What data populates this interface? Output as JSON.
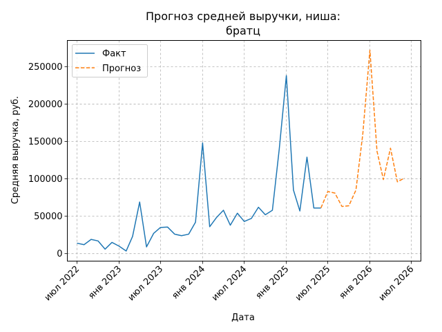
{
  "chart_data": {
    "type": "line",
    "title": [
      "Прогноз средней выручки, ниша:",
      "братц"
    ],
    "xlabel": "Дата",
    "ylabel": "Средняя выручка, руб.",
    "grid": true,
    "legend_position": "top-left",
    "xlim": [
      "2022-05-20",
      "2026-08-12"
    ],
    "ylim": [
      -10000,
      285000
    ],
    "x_ticks": [
      {
        "date": "2022-07-01",
        "label": "июл 2022"
      },
      {
        "date": "2023-01-01",
        "label": "янв 2023"
      },
      {
        "date": "2023-07-01",
        "label": "июл 2023"
      },
      {
        "date": "2024-01-01",
        "label": "янв 2024"
      },
      {
        "date": "2024-07-01",
        "label": "июл 2024"
      },
      {
        "date": "2025-01-01",
        "label": "янв 2025"
      },
      {
        "date": "2025-07-01",
        "label": "июл 2025"
      },
      {
        "date": "2026-01-01",
        "label": "янв 2026"
      },
      {
        "date": "2026-07-01",
        "label": "июл 2026"
      }
    ],
    "y_ticks": [
      0,
      50000,
      100000,
      150000,
      200000,
      250000
    ],
    "series": [
      {
        "name": "Факт",
        "color": "#1f77b4",
        "style": "solid",
        "x": [
          "2022-07-01",
          "2022-08-01",
          "2022-09-01",
          "2022-10-01",
          "2022-11-01",
          "2022-12-01",
          "2023-01-01",
          "2023-02-01",
          "2023-03-01",
          "2023-04-01",
          "2023-05-01",
          "2023-06-01",
          "2023-07-01",
          "2023-08-01",
          "2023-09-01",
          "2023-10-01",
          "2023-11-01",
          "2023-12-01",
          "2024-01-01",
          "2024-02-01",
          "2024-03-01",
          "2024-04-01",
          "2024-05-01",
          "2024-06-01",
          "2024-07-01",
          "2024-08-01",
          "2024-09-01",
          "2024-10-01",
          "2024-11-01",
          "2024-12-01",
          "2025-01-01",
          "2025-02-01",
          "2025-03-01",
          "2025-04-01",
          "2025-05-01",
          "2025-06-01"
        ],
        "y": [
          14000,
          12000,
          19000,
          17000,
          6000,
          15000,
          10000,
          3500,
          23000,
          69000,
          9000,
          27000,
          35000,
          35500,
          26000,
          24000,
          26000,
          42000,
          148000,
          36000,
          48000,
          58000,
          38000,
          54000,
          43000,
          47000,
          62000,
          52000,
          58000,
          140000,
          238000,
          85000,
          57000,
          129000,
          61000,
          61000
        ]
      },
      {
        "name": "Прогноз",
        "color": "#ff7f0e",
        "style": "dashed",
        "x": [
          "2025-06-01",
          "2025-07-01",
          "2025-08-01",
          "2025-09-01",
          "2025-10-01",
          "2025-11-01",
          "2025-12-01",
          "2026-01-01",
          "2026-02-01",
          "2026-03-01",
          "2026-04-01",
          "2026-05-01",
          "2026-06-01"
        ],
        "y": [
          61000,
          83000,
          81000,
          63000,
          64000,
          85000,
          160000,
          272000,
          137000,
          99000,
          141000,
          96000,
          101000
        ]
      }
    ]
  }
}
